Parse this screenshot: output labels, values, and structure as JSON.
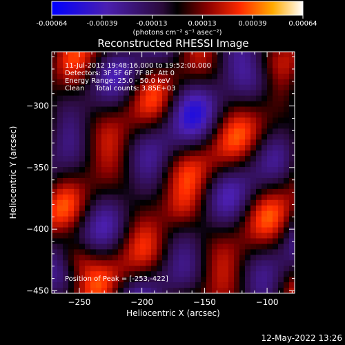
{
  "colorbar": {
    "ticks": [
      "-0.00064",
      "-0.00039",
      "-0.00013",
      "0.00013",
      "0.00039",
      "0.00064"
    ],
    "units": "(photons cm⁻² s⁻¹ asec⁻²)",
    "range": [
      -0.00064,
      0.00064
    ]
  },
  "chart_data": {
    "type": "heatmap",
    "title": "Reconstructed RHESSI Image",
    "xlabel": "Heliocentric X (arcsec)",
    "ylabel": "Heliocentric Y (arcsec)",
    "xlim": [
      -272,
      -78
    ],
    "ylim": [
      -452,
      -256
    ],
    "x_ticks": [
      {
        "value": -250,
        "label": "−250"
      },
      {
        "value": -200,
        "label": "−200"
      },
      {
        "value": -150,
        "label": "−150"
      },
      {
        "value": -100,
        "label": "−100"
      }
    ],
    "y_ticks": [
      {
        "value": -300,
        "label": "−300"
      },
      {
        "value": -350,
        "label": "−350"
      },
      {
        "value": -400,
        "label": "−400"
      },
      {
        "value": -450,
        "label": "−450"
      }
    ],
    "peak": [
      -253,
      -422
    ],
    "annotations": [
      "11-Jul-2012 19:48:16.000 to 19:52:00.000",
      "Detectors: 3F 5F 6F 7F 8F, Att 0",
      "Energy Range: 25.0 - 50.0 keV",
      "Clean     Total counts: 3.85E+03"
    ],
    "peak_label": "Position of Peak = [-253,-422]",
    "colormap": "blue-purple-black-red-yellow-white",
    "grid": false
  },
  "footer": {
    "timestamp": "12-May-2022 13:26"
  }
}
